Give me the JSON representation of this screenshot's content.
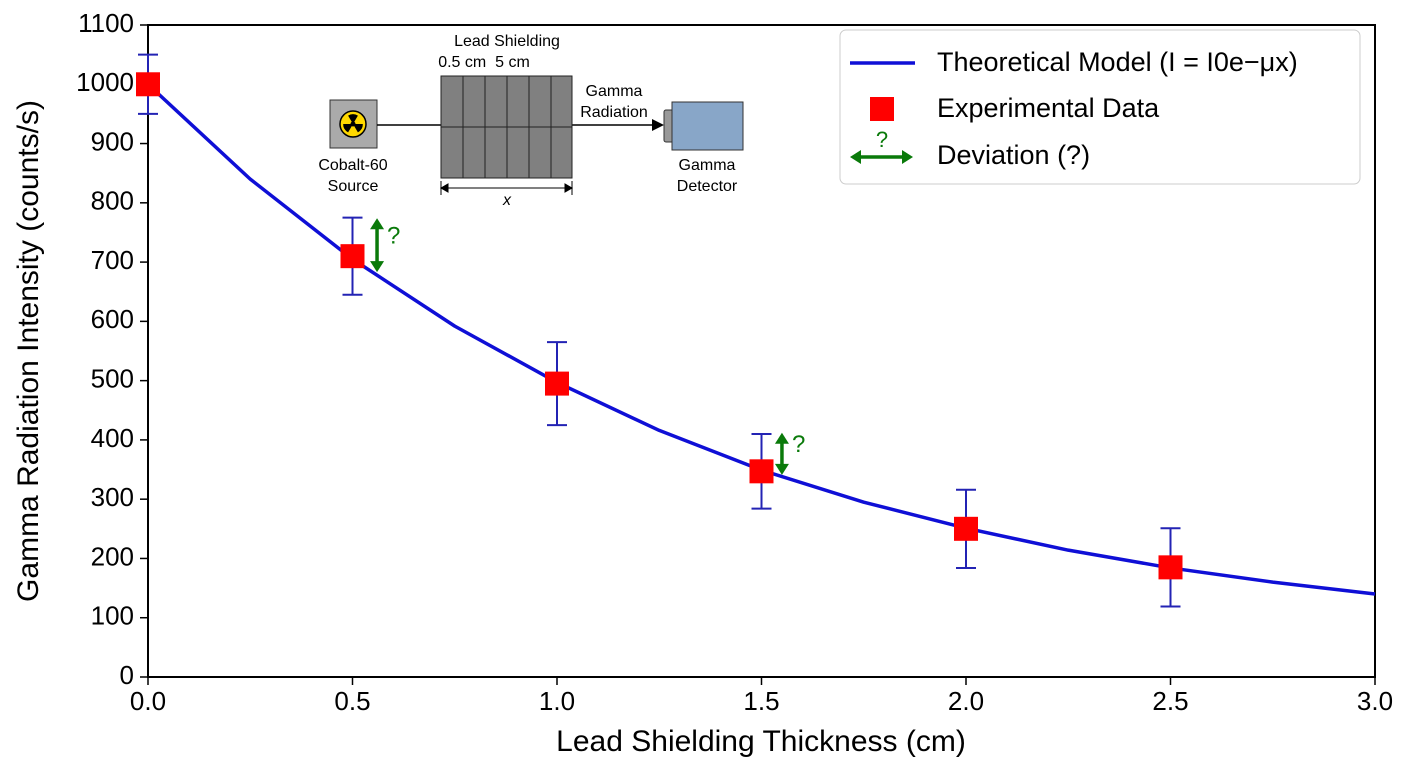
{
  "chart_data": {
    "type": "line",
    "xlabel": "Lead Shielding Thickness (cm)",
    "ylabel": "Gamma Radiation Intensity (counts/s)",
    "xlim": [
      0,
      3.0
    ],
    "ylim": [
      0,
      1100
    ],
    "xticks": [
      {
        "value": 0,
        "label": "0.0"
      },
      0.5,
      {
        "value": 1,
        "label": "1.0"
      },
      1.5,
      {
        "value": 2,
        "label": "2.0"
      },
      2.5,
      {
        "value": 3,
        "label": "3.0"
      }
    ],
    "yticks": [
      0,
      100,
      200,
      300,
      400,
      500,
      600,
      700,
      800,
      900,
      1000,
      1100
    ],
    "legend": "upper right",
    "series": [
      {
        "name": "Theoretical Model (I = I0e−μx)",
        "color": "#0f0fd6",
        "x": [
          0,
          0.25,
          0.5,
          0.75,
          1.0,
          1.25,
          1.5,
          1.75,
          2.0,
          2.25,
          2.5,
          2.75,
          3.0
        ],
        "values": [
          1000,
          840,
          705,
          592,
          497,
          416,
          349,
          295,
          251,
          214,
          184,
          160,
          140
        ]
      },
      {
        "name": "Experimental Data",
        "color": "#ff0000",
        "error_color": "#2323b4",
        "x": [
          0,
          0.5,
          1.0,
          1.5,
          2.0,
          2.5
        ],
        "values": [
          1000,
          710,
          495,
          347,
          250,
          185
        ],
        "errors": [
          50,
          65,
          70,
          63,
          66,
          66
        ]
      }
    ],
    "deviation_label": "Deviation (?)",
    "deviation_color": "#0a7a0a",
    "annotations": [
      {
        "text": "?",
        "x": 0.56,
        "y": [
          774,
          683
        ]
      },
      {
        "text": "?",
        "x": 1.55,
        "y": [
          412,
          341
        ]
      }
    ],
    "inset": {
      "shield_title": "Lead Shielding",
      "shield_sizes": "0.5 cm  5 cm",
      "beam_1": "Gamma",
      "beam_2": "Radiation",
      "source_1": "Cobalt-60",
      "source_2": "Source",
      "detector_1": "Gamma",
      "detector_2": "Detector",
      "dimension": "x"
    }
  }
}
